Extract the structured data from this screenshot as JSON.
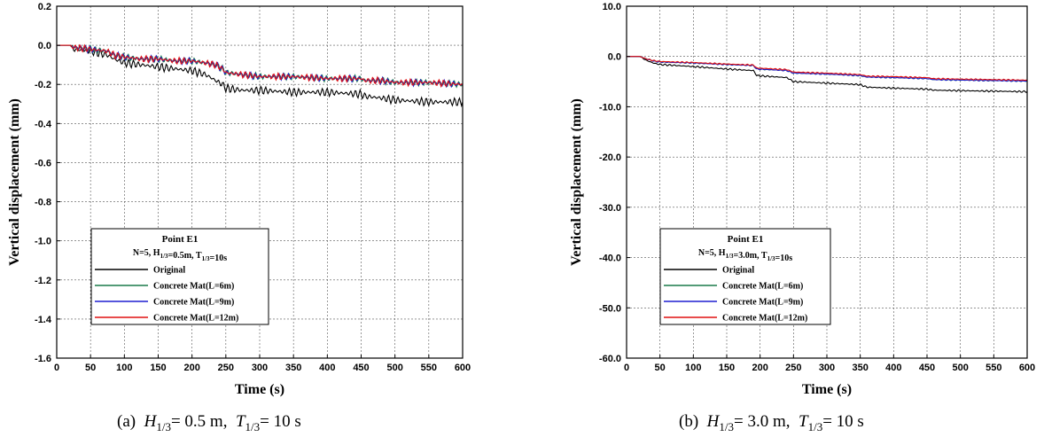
{
  "chart_data": [
    {
      "type": "line",
      "panel": "a",
      "caption_prefix": "(a)",
      "caption": "H1/3 = 0.5 m,  T1/3 = 10 s",
      "xlabel": "Time (s)",
      "ylabel": "Vertical displacement (mm)",
      "xlim": [
        0,
        600
      ],
      "ylim": [
        -1.6,
        0.2
      ],
      "xticks": [
        "0",
        "50",
        "100",
        "150",
        "200",
        "250",
        "300",
        "350",
        "400",
        "450",
        "500",
        "550",
        "600"
      ],
      "yticks": [
        "0.2",
        "0.0",
        "-0.2",
        "-0.4",
        "-0.6",
        "-0.8",
        "-1.0",
        "-1.2",
        "-1.4",
        "-1.6"
      ],
      "grid": true,
      "legend_position": "bottom-left",
      "legend_title": "Point E1",
      "legend_subtitle": "N=5, H1/3=0.5m, T1/3=10s",
      "series": [
        {
          "name": "Original",
          "color": "#000000",
          "x": [
            0,
            20,
            25,
            50,
            75,
            85,
            100,
            125,
            150,
            175,
            200,
            220,
            235,
            245,
            250,
            275,
            300,
            350,
            400,
            450,
            455,
            480,
            500,
            550,
            600
          ],
          "y": [
            0,
            0,
            -0.02,
            -0.03,
            -0.05,
            -0.07,
            -0.09,
            -0.1,
            -0.11,
            -0.12,
            -0.13,
            -0.15,
            -0.18,
            -0.2,
            -0.22,
            -0.23,
            -0.23,
            -0.24,
            -0.24,
            -0.25,
            -0.26,
            -0.27,
            -0.28,
            -0.29,
            -0.29
          ]
        },
        {
          "name": "Concrete Mat(L=6m)",
          "color": "#1a7a4a",
          "x": [
            0,
            20,
            25,
            50,
            75,
            85,
            100,
            125,
            150,
            175,
            200,
            220,
            235,
            245,
            250,
            275,
            300,
            350,
            400,
            450,
            455,
            480,
            500,
            550,
            600
          ],
          "y": [
            0,
            0,
            -0.01,
            -0.02,
            -0.03,
            -0.05,
            -0.06,
            -0.07,
            -0.07,
            -0.08,
            -0.08,
            -0.09,
            -0.1,
            -0.12,
            -0.14,
            -0.15,
            -0.16,
            -0.16,
            -0.17,
            -0.17,
            -0.18,
            -0.18,
            -0.19,
            -0.19,
            -0.2
          ]
        },
        {
          "name": "Concrete Mat(L=9m)",
          "color": "#1f1fd0",
          "x": [
            0,
            20,
            25,
            50,
            75,
            85,
            100,
            125,
            150,
            175,
            200,
            220,
            235,
            245,
            250,
            275,
            300,
            350,
            400,
            450,
            455,
            480,
            500,
            550,
            600
          ],
          "y": [
            0,
            0,
            -0.01,
            -0.02,
            -0.03,
            -0.05,
            -0.06,
            -0.07,
            -0.07,
            -0.08,
            -0.08,
            -0.09,
            -0.1,
            -0.12,
            -0.14,
            -0.15,
            -0.16,
            -0.16,
            -0.17,
            -0.17,
            -0.18,
            -0.18,
            -0.19,
            -0.19,
            -0.2
          ]
        },
        {
          "name": "Concrete Mat(L=12m)",
          "color": "#e01010",
          "x": [
            0,
            20,
            25,
            50,
            75,
            85,
            100,
            125,
            150,
            175,
            200,
            220,
            235,
            245,
            250,
            275,
            300,
            350,
            400,
            450,
            455,
            480,
            500,
            550,
            600
          ],
          "y": [
            0,
            0,
            -0.01,
            -0.02,
            -0.03,
            -0.05,
            -0.06,
            -0.07,
            -0.07,
            -0.08,
            -0.08,
            -0.09,
            -0.1,
            -0.12,
            -0.14,
            -0.15,
            -0.16,
            -0.16,
            -0.17,
            -0.17,
            -0.18,
            -0.18,
            -0.19,
            -0.19,
            -0.2
          ]
        }
      ]
    },
    {
      "type": "line",
      "panel": "b",
      "caption_prefix": "(b)",
      "caption": "H1/3 = 3.0 m,  T1/3 = 10 s",
      "xlabel": "Time (s)",
      "ylabel": "Vertical displacement (mm)",
      "xlim": [
        0,
        600
      ],
      "ylim": [
        -60,
        10
      ],
      "xticks": [
        "0",
        "50",
        "100",
        "150",
        "200",
        "250",
        "300",
        "350",
        "400",
        "450",
        "500",
        "550",
        "600"
      ],
      "yticks": [
        "10.0",
        "0.0",
        "-10.0",
        "-20.0",
        "-30.0",
        "-40.0",
        "-50.0",
        "-60.0"
      ],
      "grid": true,
      "legend_position": "bottom-left",
      "legend_title": "Point E1",
      "legend_subtitle": "N=5, H1/3=3.0m, T1/3=10s",
      "series": [
        {
          "name": "Original",
          "color": "#000000",
          "x": [
            0,
            20,
            30,
            40,
            50,
            100,
            150,
            190,
            195,
            240,
            250,
            300,
            350,
            360,
            400,
            450,
            460,
            500,
            550,
            600
          ],
          "y": [
            0,
            0,
            -0.8,
            -1.3,
            -1.6,
            -2.0,
            -2.5,
            -2.8,
            -3.8,
            -4.2,
            -5.0,
            -5.3,
            -5.6,
            -6.1,
            -6.3,
            -6.5,
            -6.7,
            -6.8,
            -6.9,
            -7.0
          ]
        },
        {
          "name": "Concrete Mat(L=6m)",
          "color": "#1a7a4a",
          "x": [
            0,
            20,
            30,
            40,
            50,
            100,
            150,
            190,
            195,
            240,
            250,
            300,
            350,
            360,
            400,
            450,
            460,
            500,
            550,
            600
          ],
          "y": [
            0,
            0,
            -0.5,
            -0.9,
            -1.1,
            -1.3,
            -1.6,
            -1.8,
            -2.5,
            -2.8,
            -3.3,
            -3.5,
            -3.8,
            -4.1,
            -4.2,
            -4.4,
            -4.6,
            -4.7,
            -4.8,
            -4.9
          ]
        },
        {
          "name": "Concrete Mat(L=9m)",
          "color": "#1f1fd0",
          "x": [
            0,
            20,
            30,
            40,
            50,
            100,
            150,
            190,
            195,
            240,
            250,
            300,
            350,
            360,
            400,
            450,
            460,
            500,
            550,
            600
          ],
          "y": [
            0,
            0,
            -0.5,
            -0.9,
            -1.1,
            -1.3,
            -1.6,
            -1.8,
            -2.5,
            -2.8,
            -3.3,
            -3.5,
            -3.8,
            -4.1,
            -4.2,
            -4.4,
            -4.6,
            -4.7,
            -4.8,
            -4.9
          ]
        },
        {
          "name": "Concrete Mat(L=12m)",
          "color": "#e01010",
          "x": [
            0,
            20,
            30,
            40,
            50,
            100,
            150,
            190,
            195,
            240,
            250,
            300,
            350,
            360,
            400,
            450,
            460,
            500,
            550,
            600
          ],
          "y": [
            0,
            0,
            -0.5,
            -0.8,
            -1.0,
            -1.2,
            -1.5,
            -1.7,
            -2.3,
            -2.6,
            -3.1,
            -3.3,
            -3.6,
            -3.9,
            -4.0,
            -4.2,
            -4.4,
            -4.5,
            -4.6,
            -4.7
          ]
        }
      ]
    }
  ]
}
